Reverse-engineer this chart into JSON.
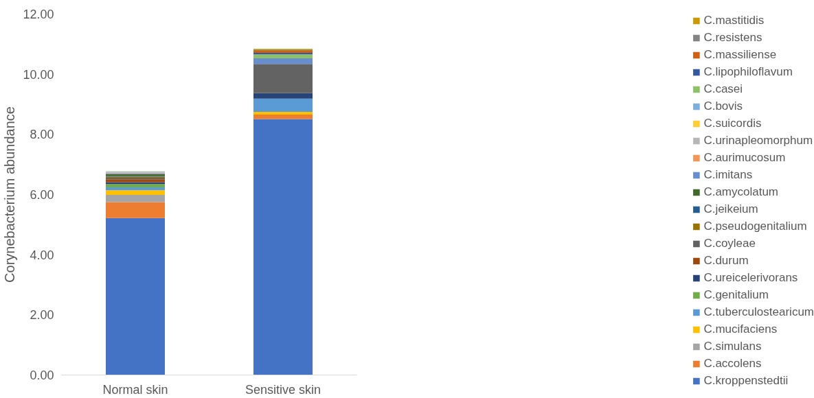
{
  "chart_data": {
    "type": "bar",
    "stacked": true,
    "ylabel": "Corynebacterium abundance",
    "categories": [
      "Normal skin",
      "Sensitive skin"
    ],
    "ylim": [
      0,
      12
    ],
    "yticks": [
      {
        "value": 0,
        "label": "0.00"
      },
      {
        "value": 2,
        "label": "2.00"
      },
      {
        "value": 4,
        "label": "4.00"
      },
      {
        "value": 6,
        "label": "6.00"
      },
      {
        "value": 8,
        "label": "8.00"
      },
      {
        "value": 10,
        "label": "10.00"
      },
      {
        "value": 12,
        "label": "12.00"
      }
    ],
    "grid": false,
    "legend": "right",
    "series": [
      {
        "name": "C.kroppenstedtii",
        "color": "#4472c4",
        "values": [
          5.22,
          8.51
        ]
      },
      {
        "name": "C.accolens",
        "color": "#ed7d31",
        "values": [
          0.53,
          0.15
        ]
      },
      {
        "name": "C.simulans",
        "color": "#a5a5a5",
        "values": [
          0.24,
          null
        ]
      },
      {
        "name": "C.mucifaciens",
        "color": "#ffc000",
        "values": [
          0.15,
          0.09
        ]
      },
      {
        "name": "C.tuberculostearicum",
        "color": "#5b9bd5",
        "values": [
          0.1,
          0.44
        ]
      },
      {
        "name": "C.genitalium",
        "color": "#70ad47",
        "values": [
          0.11,
          0
        ]
      },
      {
        "name": "C.ureicelerivorans",
        "color": "#264478",
        "values": [
          0.06,
          0.18
        ]
      },
      {
        "name": "C.durum",
        "color": "#9e480e",
        "values": [
          0.1,
          0
        ]
      },
      {
        "name": "C.coyleae",
        "color": "#636363",
        "values": [
          0.05,
          0.97
        ]
      },
      {
        "name": "C.pseudogenitalium",
        "color": "#997300",
        "values": [
          0.04,
          0
        ]
      },
      {
        "name": "C.jeikeium",
        "color": "#255e91",
        "values": [
          0.02,
          0
        ]
      },
      {
        "name": "C.amycolatum",
        "color": "#43682b",
        "values": [
          0.06,
          0
        ]
      },
      {
        "name": "C.imitans",
        "color": "#698ed0",
        "values": [
          0.03,
          0.19
        ]
      },
      {
        "name": "C.aurimucosum",
        "color": "#f1975a",
        "values": [
          0.02,
          0
        ]
      },
      {
        "name": "C.urinapleomorphum",
        "color": "#b7b7b7",
        "values": [
          0.01,
          0
        ]
      },
      {
        "name": "C.suicordis",
        "color": "#ffcd33",
        "values": [
          null,
          0
        ]
      },
      {
        "name": "C.bovis",
        "color": "#7cafdd",
        "values": [
          0.02,
          0
        ]
      },
      {
        "name": "C.casei",
        "color": "#8cc168",
        "values": [
          0.01,
          0.13
        ]
      },
      {
        "name": "C.lipophiloflavum",
        "color": "#335aa1",
        "values": [
          0,
          0.05
        ]
      },
      {
        "name": "C.massiliense",
        "color": "#d26012",
        "values": [
          0,
          0.07
        ]
      },
      {
        "name": "C.resistens",
        "color": "#848484",
        "values": [
          0,
          0.02
        ]
      },
      {
        "name": "C.mastitidis",
        "color": "#cc9a00",
        "values": [
          0,
          0.04
        ]
      }
    ]
  }
}
